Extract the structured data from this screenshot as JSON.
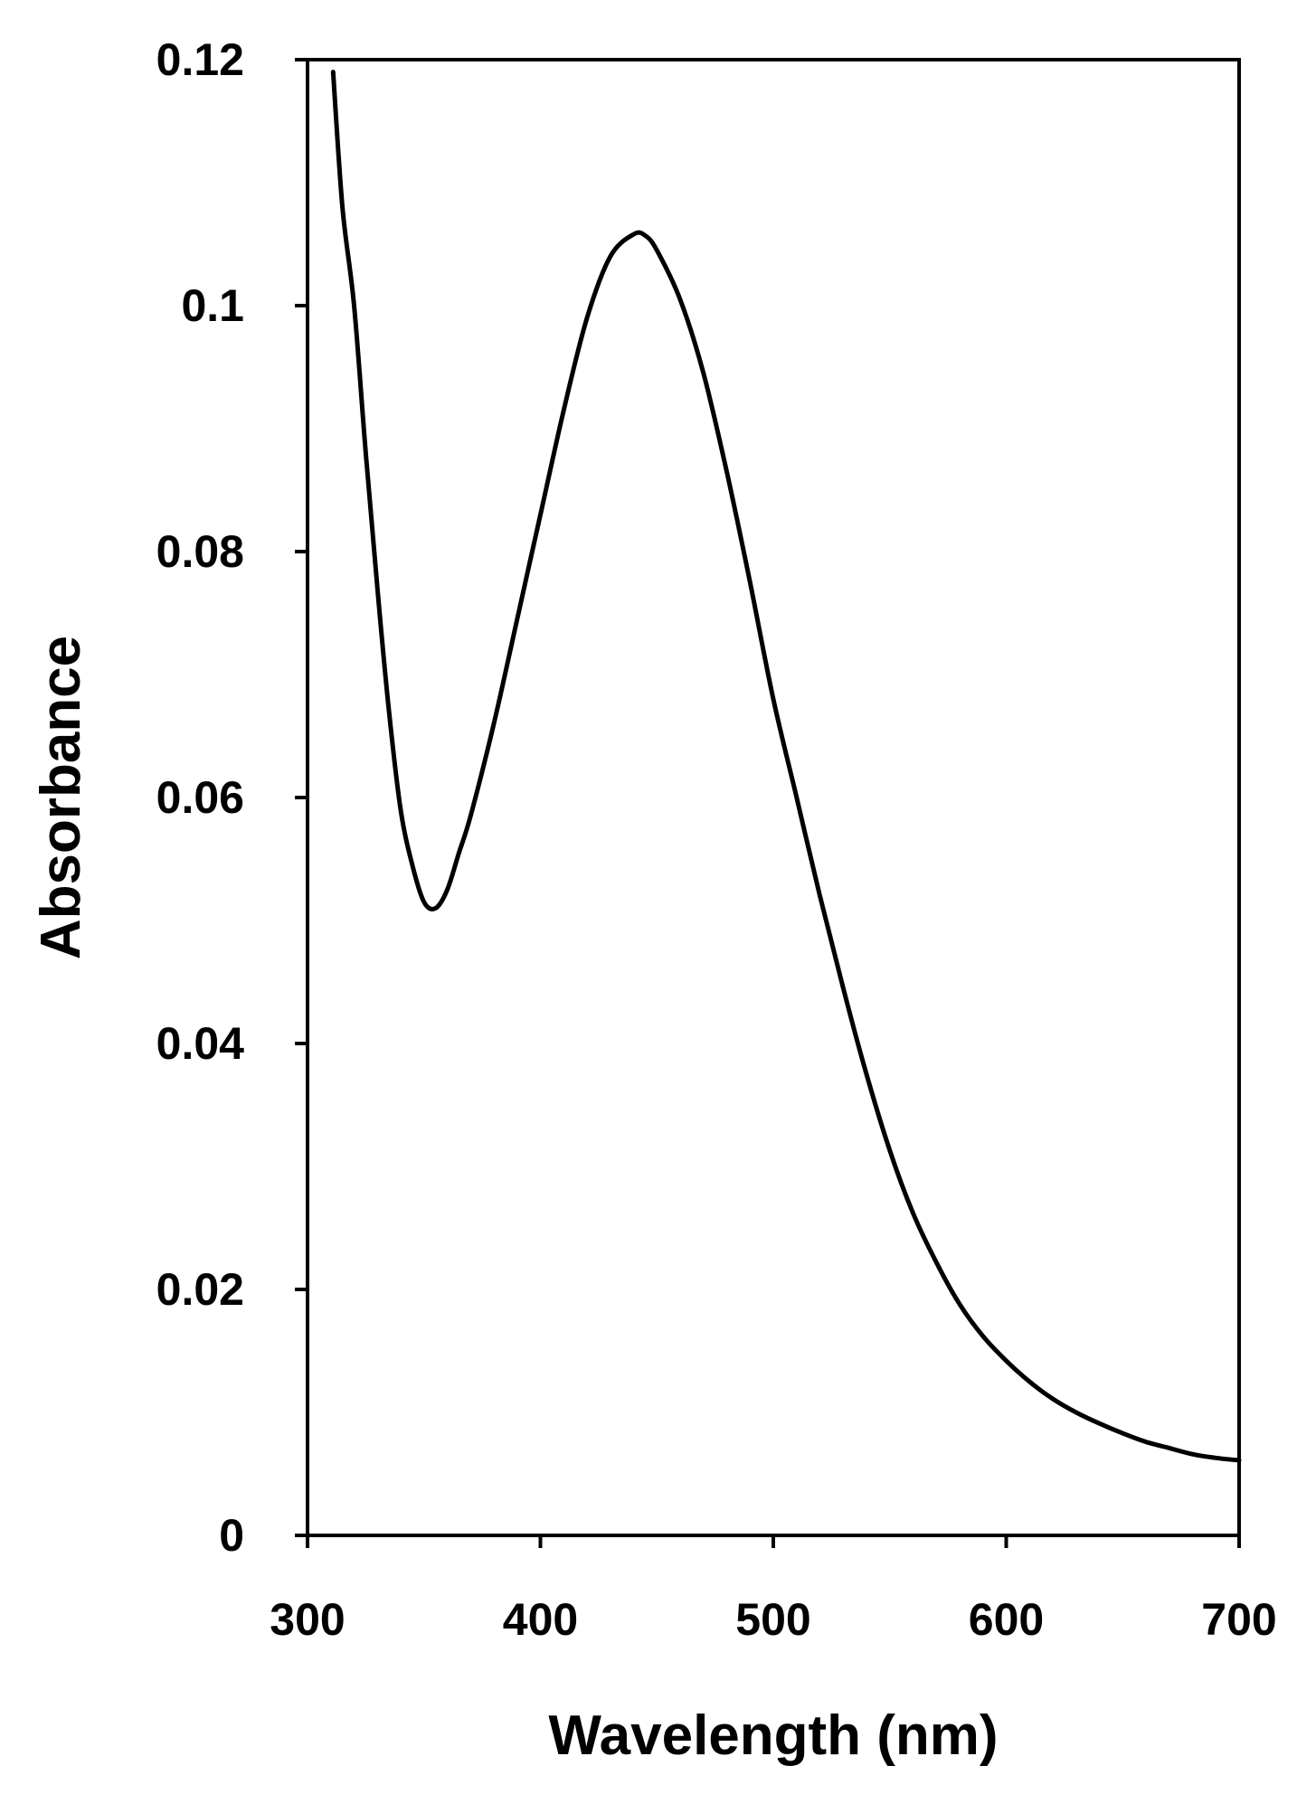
{
  "chart_data": {
    "type": "line",
    "title": "",
    "xlabel": "Wavelength (nm)",
    "ylabel": "Absorbance",
    "xlim": [
      300,
      700
    ],
    "ylim": [
      0,
      0.12
    ],
    "x_ticks": [
      300,
      400,
      500,
      600,
      700
    ],
    "x_tick_labels": [
      "300",
      "400",
      "500",
      "600",
      "700"
    ],
    "y_ticks": [
      0,
      0.02,
      0.04,
      0.06,
      0.08,
      0.1,
      0.12
    ],
    "y_tick_labels": [
      "0",
      "0.02",
      "0.04",
      "0.06",
      "0.08",
      "0.1",
      "0.12"
    ],
    "grid": false,
    "legend": "none",
    "line_color": "#000000",
    "series": [
      {
        "x": [
          311,
          315,
          320,
          325,
          330,
          335,
          340,
          345,
          350,
          355,
          360,
          365,
          370,
          380,
          390,
          400,
          410,
          420,
          430,
          440,
          445,
          450,
          460,
          470,
          480,
          490,
          500,
          510,
          520,
          530,
          540,
          550,
          560,
          570,
          580,
          590,
          600,
          610,
          620,
          630,
          640,
          650,
          660,
          670,
          680,
          690,
          700
        ],
        "y": [
          0.119,
          0.108,
          0.1,
          0.088,
          0.077,
          0.067,
          0.059,
          0.0545,
          0.0515,
          0.051,
          0.0525,
          0.0555,
          0.0585,
          0.066,
          0.0745,
          0.083,
          0.0915,
          0.099,
          0.104,
          0.1058,
          0.1057,
          0.1045,
          0.1005,
          0.0945,
          0.0865,
          0.0775,
          0.068,
          0.06,
          0.052,
          0.0445,
          0.0375,
          0.0313,
          0.0262,
          0.0222,
          0.0188,
          0.0162,
          0.0142,
          0.0125,
          0.0111,
          0.01,
          0.0091,
          0.0083,
          0.0076,
          0.0071,
          0.0066,
          0.0063,
          0.0061
        ]
      }
    ]
  }
}
